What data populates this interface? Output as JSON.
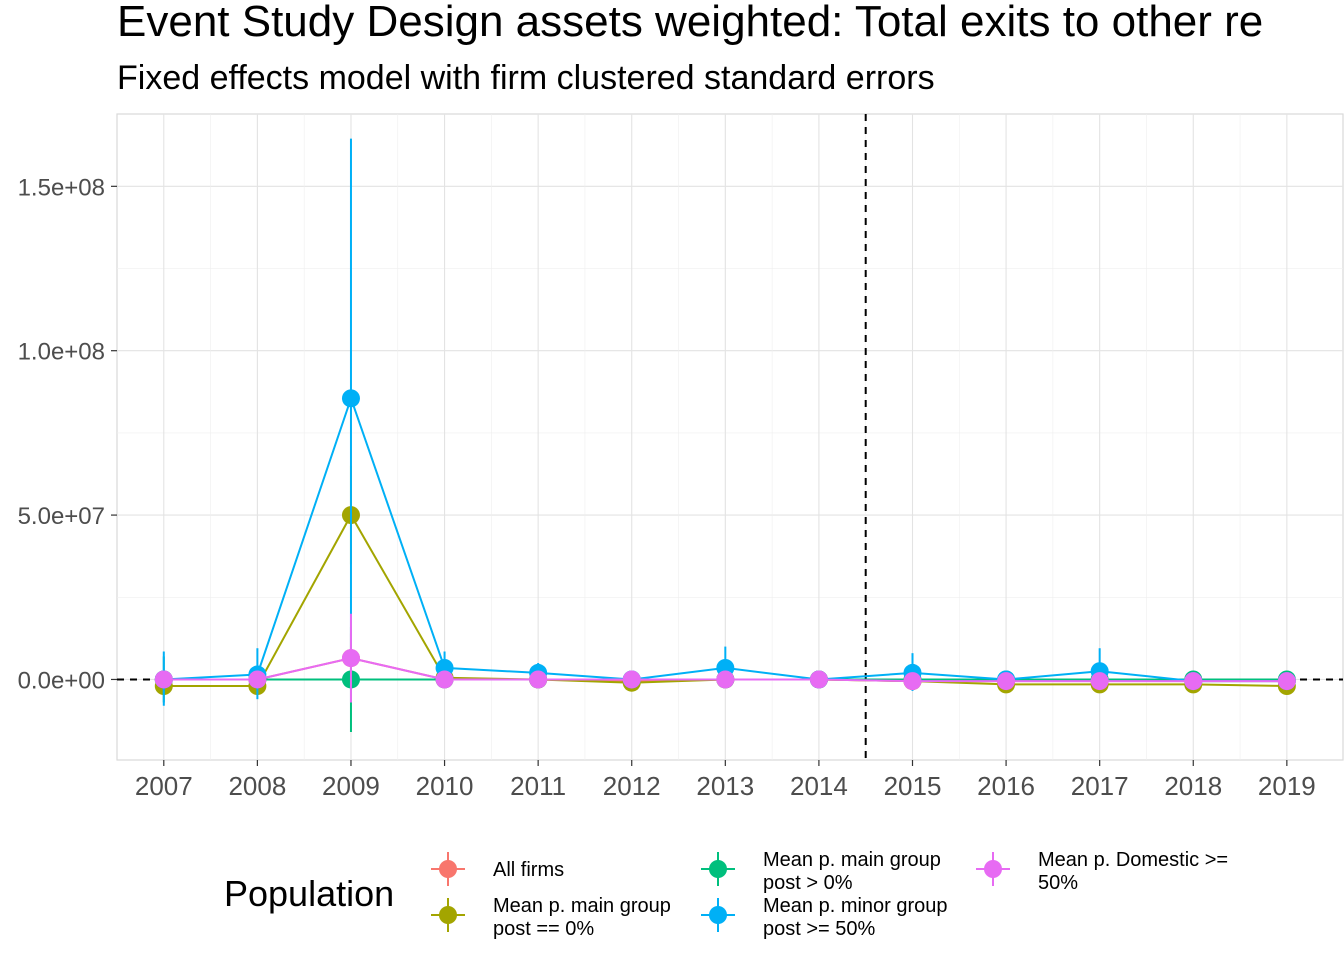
{
  "chart_data": {
    "type": "line",
    "title": "Event Study Design assets weighted: Total exits to other re",
    "subtitle": "Fixed effects model with firm clustered standard errors",
    "xlabel": "",
    "ylabel": "",
    "x": [
      2007,
      2008,
      2009,
      2010,
      2011,
      2012,
      2013,
      2014,
      2015,
      2016,
      2017,
      2018,
      2019
    ],
    "x_tick_labels": [
      "2007",
      "2008",
      "2009",
      "2010",
      "2011",
      "2012",
      "2013",
      "2014",
      "2015",
      "2016",
      "2017",
      "2018",
      "2019"
    ],
    "y_tick_values": [
      0,
      50000000,
      100000000,
      150000000
    ],
    "y_tick_labels": [
      "0.0e+00",
      "5.0e+07",
      "1.0e+08",
      "1.5e+08"
    ],
    "ylim": [
      -24500000,
      172000000
    ],
    "xlim": [
      2006.5,
      2019.6
    ],
    "grid": true,
    "reference_lines": {
      "horizontal_y": 0,
      "vertical_x": 2014.5,
      "style": "dashed"
    },
    "legend": {
      "title": "Population",
      "position": "bottom",
      "items": [
        {
          "label_lines": [
            "All firms"
          ]
        },
        {
          "label_lines": [
            "Mean p. main group",
            "post == 0%"
          ]
        },
        {
          "label_lines": [
            "Mean p. main group",
            "post > 0%"
          ]
        },
        {
          "label_lines": [
            "Mean p. minor group",
            "post >= 50%"
          ]
        },
        {
          "label_lines": [
            "Mean p. Domestic >=",
            "50%"
          ]
        }
      ]
    },
    "series": [
      {
        "name": "All firms",
        "color": "#F8766D",
        "values": [
          0,
          0,
          6500000,
          0,
          0,
          -500000,
          0,
          0,
          -500000,
          -500000,
          -500000,
          -500000,
          -500000
        ],
        "lower": [
          -500000,
          -500000,
          -1000000,
          -500000,
          -500000,
          -1000000,
          -500000,
          -200000,
          -1000000,
          -1000000,
          -1000000,
          -1000000,
          -1000000
        ],
        "upper": [
          500000,
          500000,
          14000000,
          500000,
          500000,
          0,
          500000,
          200000,
          0,
          0,
          0,
          0,
          0
        ]
      },
      {
        "name": "Mean p. main group post == 0%",
        "color": "#A3A500",
        "values": [
          -2000000,
          -2000000,
          50000000,
          500000,
          0,
          -1000000,
          0,
          0,
          -500000,
          -1500000,
          -1500000,
          -1500000,
          -2000000
        ],
        "lower": [
          -3000000,
          -3000000,
          35000000,
          -500000,
          -500000,
          -2000000,
          -500000,
          -200000,
          -1500000,
          -2500000,
          -2500000,
          -2500000,
          -3000000
        ],
        "upper": [
          -1000000,
          -1000000,
          65000000,
          1500000,
          500000,
          0,
          500000,
          200000,
          500000,
          -500000,
          -500000,
          -500000,
          -1000000
        ]
      },
      {
        "name": "Mean p. main group post > 0%",
        "color": "#00BF7D",
        "values": [
          0,
          0,
          0,
          0,
          0,
          0,
          0,
          0,
          0,
          0,
          0,
          0,
          0
        ],
        "lower": [
          -7000000,
          -3000000,
          -16000000,
          -1000000,
          -1000000,
          -500000,
          -500000,
          -200000,
          -1000000,
          -1000000,
          -1000000,
          -500000,
          -500000
        ],
        "upper": [
          7000000,
          3000000,
          16000000,
          1000000,
          1000000,
          500000,
          500000,
          200000,
          1000000,
          1000000,
          1000000,
          500000,
          500000
        ]
      },
      {
        "name": "Mean p. minor group post >= 50%",
        "color": "#00B0F6",
        "values": [
          0,
          1500000,
          85500000,
          3500000,
          2000000,
          0,
          3500000,
          0,
          2000000,
          0,
          2500000,
          -500000,
          -500000
        ],
        "lower": [
          -8000000,
          -6000000,
          6000000,
          -1000000,
          -1000000,
          -1500000,
          -1500000,
          -200000,
          -3500000,
          -1500000,
          -2500000,
          -1500000,
          -1500000
        ],
        "upper": [
          8500000,
          9500000,
          164500000,
          8500000,
          5000000,
          1500000,
          10000000,
          200000,
          8000000,
          1500000,
          9500000,
          500000,
          500000
        ]
      },
      {
        "name": "Mean p. Domestic >= 50%",
        "color": "#E76BF3",
        "values": [
          0,
          0,
          6500000,
          0,
          0,
          0,
          0,
          0,
          -500000,
          -500000,
          -500000,
          -500000,
          -500000
        ],
        "lower": [
          -500000,
          -500000,
          -7000000,
          -500000,
          -500000,
          -500000,
          -500000,
          -200000,
          -1000000,
          -1000000,
          -1000000,
          -1000000,
          -1000000
        ],
        "upper": [
          500000,
          500000,
          20000000,
          500000,
          500000,
          500000,
          500000,
          200000,
          0,
          0,
          0,
          0,
          0
        ]
      }
    ]
  }
}
